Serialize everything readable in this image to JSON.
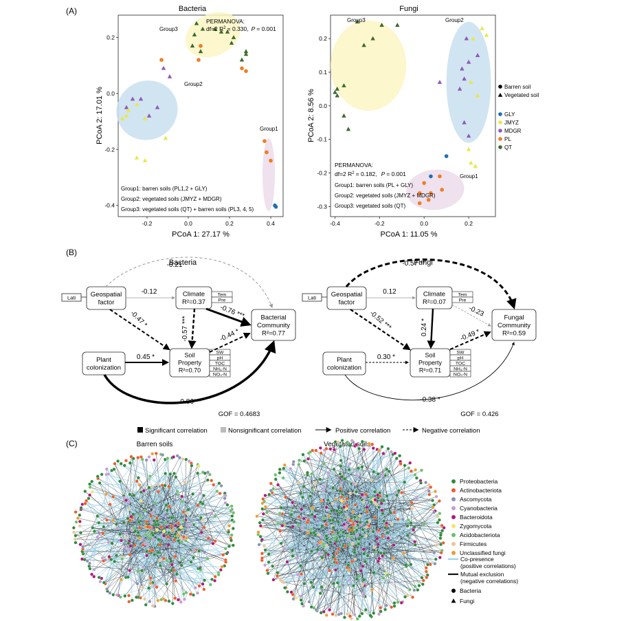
{
  "panel_labels": {
    "a": "(A)",
    "b": "(B)",
    "c": "(C)"
  },
  "colors": {
    "GLY": "#1f6fb2",
    "JMYZ": "#e8e84a",
    "MDGR": "#8e5ab8",
    "PL": "#f07d1e",
    "QT": "#3d6b2a",
    "group_yellow": "#fbf6c4",
    "group_blue": "#c9dff0",
    "group_pink": "#ecdcea"
  },
  "chart_data": [
    {
      "type": "scatter",
      "id": "bacteria_pcoa",
      "title": "Bacteria",
      "xlabel": "PCoA 1: 27.17 %",
      "ylabel": "PCoA 2: 17.01 %",
      "xlim": [
        -0.34,
        0.46
      ],
      "ylim": [
        -0.44,
        0.28
      ],
      "xticks": [
        "-0.2",
        "0.0",
        "0.2",
        "0.4"
      ],
      "xtick_values": [
        -0.2,
        0.0,
        0.2,
        0.4
      ],
      "yticks": [
        "0.2",
        "0.0",
        "-0.2",
        "-0.4"
      ],
      "ytick_values": [
        0.2,
        0.0,
        -0.2,
        -0.4
      ],
      "permanova": {
        "line1": "PERMANOVA:",
        "line2a": "df=2 R",
        "sup": "2",
        "line2b": "= 0.330,",
        "p": "P",
        "line2c": "= 0.001"
      },
      "groups": [
        {
          "label": "Group3",
          "cx": 0.12,
          "cy": 0.21,
          "rx": 0.14,
          "ry": 0.075,
          "angle": -25,
          "color": "group_yellow"
        },
        {
          "label": "Group2",
          "cx": -0.2,
          "cy": -0.06,
          "rx": 0.15,
          "ry": 0.105,
          "angle": -28,
          "color": "group_blue"
        },
        {
          "label": "Group1",
          "cx": 0.39,
          "cy": -0.29,
          "rx": 0.03,
          "ry": 0.13,
          "angle": 0,
          "color": "group_pink"
        }
      ],
      "group_notes": [
        "Group1: barren soils (PL1,2 + GLY)",
        "Group2: vegetated soils (JMYZ + MDGR)",
        "Group3: vegetated soils (QT) + barren soils (PL3, 4, 5)"
      ],
      "points": [
        {
          "x": 0.04,
          "y": 0.25,
          "site": "QT",
          "shape": "triangle"
        },
        {
          "x": 0.07,
          "y": 0.23,
          "site": "QT",
          "shape": "triangle"
        },
        {
          "x": 0.03,
          "y": 0.21,
          "site": "QT",
          "shape": "triangle"
        },
        {
          "x": 0.13,
          "y": 0.23,
          "site": "QT",
          "shape": "triangle"
        },
        {
          "x": 0.16,
          "y": 0.22,
          "site": "QT",
          "shape": "triangle"
        },
        {
          "x": 0.19,
          "y": 0.22,
          "site": "QT",
          "shape": "triangle"
        },
        {
          "x": 0.22,
          "y": 0.2,
          "site": "QT",
          "shape": "triangle"
        },
        {
          "x": 0.21,
          "y": 0.18,
          "site": "QT",
          "shape": "triangle"
        },
        {
          "x": 0.28,
          "y": 0.15,
          "site": "QT",
          "shape": "triangle"
        },
        {
          "x": 0.28,
          "y": 0.14,
          "site": "QT",
          "shape": "triangle"
        },
        {
          "x": 0.26,
          "y": 0.12,
          "site": "QT",
          "shape": "triangle"
        },
        {
          "x": 0.02,
          "y": 0.17,
          "site": "QT",
          "shape": "triangle"
        },
        {
          "x": 0.06,
          "y": 0.15,
          "site": "QT",
          "shape": "triangle"
        },
        {
          "x": 0.06,
          "y": 0.17,
          "site": "PL",
          "shape": "circle"
        },
        {
          "x": 0.05,
          "y": 0.12,
          "site": "PL",
          "shape": "circle"
        },
        {
          "x": 0.26,
          "y": 0.09,
          "site": "PL",
          "shape": "circle"
        },
        {
          "x": 0.28,
          "y": 0.08,
          "site": "PL",
          "shape": "circle"
        },
        {
          "x": -0.13,
          "y": 0.12,
          "site": "PL",
          "shape": "circle"
        },
        {
          "x": -0.09,
          "y": 0.06,
          "site": "MDGR",
          "shape": "triangle"
        },
        {
          "x": -0.12,
          "y": 0.09,
          "site": "MDGR",
          "shape": "triangle"
        },
        {
          "x": -0.27,
          "y": -0.02,
          "site": "MDGR",
          "shape": "triangle"
        },
        {
          "x": -0.23,
          "y": -0.02,
          "site": "MDGR",
          "shape": "triangle"
        },
        {
          "x": -0.15,
          "y": -0.05,
          "site": "MDGR",
          "shape": "triangle"
        },
        {
          "x": -0.3,
          "y": -0.05,
          "site": "MDGR",
          "shape": "triangle"
        },
        {
          "x": -0.19,
          "y": -0.08,
          "site": "MDGR",
          "shape": "triangle"
        },
        {
          "x": -0.25,
          "y": -0.04,
          "site": "JMYZ",
          "shape": "triangle"
        },
        {
          "x": -0.29,
          "y": -0.06,
          "site": "JMYZ",
          "shape": "triangle"
        },
        {
          "x": -0.32,
          "y": -0.09,
          "site": "JMYZ",
          "shape": "triangle"
        },
        {
          "x": -0.3,
          "y": -0.08,
          "site": "JMYZ",
          "shape": "triangle"
        },
        {
          "x": -0.21,
          "y": -0.09,
          "site": "JMYZ",
          "shape": "triangle"
        },
        {
          "x": -0.11,
          "y": -0.16,
          "site": "JMYZ",
          "shape": "triangle"
        },
        {
          "x": -0.25,
          "y": -0.23,
          "site": "JMYZ",
          "shape": "triangle"
        },
        {
          "x": -0.21,
          "y": -0.24,
          "site": "JMYZ",
          "shape": "triangle"
        },
        {
          "x": 0.37,
          "y": -0.17,
          "site": "PL",
          "shape": "circle"
        },
        {
          "x": 0.38,
          "y": -0.21,
          "site": "PL",
          "shape": "circle"
        },
        {
          "x": 0.4,
          "y": -0.24,
          "site": "PL",
          "shape": "circle"
        },
        {
          "x": 0.42,
          "y": -0.4,
          "site": "GLY",
          "shape": "circle"
        },
        {
          "x": 0.425,
          "y": -0.405,
          "site": "GLY",
          "shape": "circle"
        }
      ]
    },
    {
      "type": "scatter",
      "id": "fungi_pcoa",
      "title": "Fungi",
      "xlabel": "PCoA 1: 11.05 %",
      "ylabel": "PCoA 2: 8.56 %",
      "xlim": [
        -0.42,
        0.32
      ],
      "ylim": [
        -0.33,
        0.27
      ],
      "xticks": [
        "-0.4",
        "-0.2",
        "0.0",
        "0.2"
      ],
      "xtick_values": [
        -0.4,
        -0.2,
        0.0,
        0.2
      ],
      "yticks": [
        "0.2",
        "0.1",
        "0.0",
        "-0.1",
        "-0.2",
        "-0.3"
      ],
      "ytick_values": [
        0.2,
        0.1,
        0.0,
        -0.1,
        -0.2,
        -0.3
      ],
      "permanova": {
        "line1": "PERMANOVA:",
        "line2a": "df=2 R",
        "sup": "2",
        "line2b": "= 0.182,",
        "p": "P",
        "line2c": "= 0.001"
      },
      "groups": [
        {
          "label": "Group3",
          "cx": -0.25,
          "cy": 0.12,
          "rx": 0.17,
          "ry": 0.135,
          "angle": 0,
          "color": "group_yellow"
        },
        {
          "label": "Group2",
          "cx": 0.2,
          "cy": 0.07,
          "rx": 0.1,
          "ry": 0.18,
          "angle": 0,
          "color": "group_blue"
        },
        {
          "label": "Group1",
          "cx": 0.05,
          "cy": -0.25,
          "rx": 0.13,
          "ry": 0.06,
          "angle": -5,
          "color": "group_pink"
        }
      ],
      "group_notes": [
        "Group1: barren soils (PL + GLY)",
        "Group2: vegetated soils (JMYZ + MDGR)",
        "Group3: vegetated soils (QT)"
      ],
      "legend_shape": [
        {
          "label": "Barren soil",
          "shape": "circle"
        },
        {
          "label": "Vegetated soil",
          "shape": "triangle"
        }
      ],
      "legend_sites": [
        "GLY",
        "JMYZ",
        "MDGR",
        "PL",
        "QT"
      ],
      "points": [
        {
          "x": -0.3,
          "y": 0.25,
          "site": "QT",
          "shape": "triangle"
        },
        {
          "x": -0.19,
          "y": 0.24,
          "site": "QT",
          "shape": "triangle"
        },
        {
          "x": -0.12,
          "y": 0.24,
          "site": "QT",
          "shape": "triangle"
        },
        {
          "x": -0.23,
          "y": 0.2,
          "site": "QT",
          "shape": "triangle"
        },
        {
          "x": -0.27,
          "y": 0.18,
          "site": "QT",
          "shape": "triangle"
        },
        {
          "x": -0.36,
          "y": 0.06,
          "site": "QT",
          "shape": "triangle"
        },
        {
          "x": -0.39,
          "y": 0.05,
          "site": "QT",
          "shape": "triangle"
        },
        {
          "x": -0.4,
          "y": 0.04,
          "site": "QT",
          "shape": "triangle"
        },
        {
          "x": -0.39,
          "y": 0.03,
          "site": "QT",
          "shape": "triangle"
        },
        {
          "x": -0.36,
          "y": -0.03,
          "site": "QT",
          "shape": "triangle"
        },
        {
          "x": -0.34,
          "y": -0.07,
          "site": "QT",
          "shape": "triangle"
        },
        {
          "x": 0.26,
          "y": 0.23,
          "site": "JMYZ",
          "shape": "triangle"
        },
        {
          "x": 0.28,
          "y": 0.21,
          "site": "JMYZ",
          "shape": "triangle"
        },
        {
          "x": 0.22,
          "y": 0.2,
          "site": "JMYZ",
          "shape": "triangle"
        },
        {
          "x": 0.19,
          "y": 0.2,
          "site": "MDGR",
          "shape": "triangle"
        },
        {
          "x": 0.24,
          "y": 0.15,
          "site": "MDGR",
          "shape": "triangle"
        },
        {
          "x": 0.2,
          "y": 0.13,
          "site": "MDGR",
          "shape": "triangle"
        },
        {
          "x": 0.17,
          "y": 0.11,
          "site": "MDGR",
          "shape": "triangle"
        },
        {
          "x": 0.18,
          "y": 0.08,
          "site": "MDGR",
          "shape": "triangle"
        },
        {
          "x": 0.07,
          "y": 0.07,
          "site": "MDGR",
          "shape": "triangle"
        },
        {
          "x": 0.16,
          "y": 0.05,
          "site": "MDGR",
          "shape": "triangle"
        },
        {
          "x": 0.21,
          "y": 0.07,
          "site": "JMYZ",
          "shape": "triangle"
        },
        {
          "x": 0.24,
          "y": 0.03,
          "site": "JMYZ",
          "shape": "triangle"
        },
        {
          "x": 0.18,
          "y": -0.05,
          "site": "MDGR",
          "shape": "triangle"
        },
        {
          "x": 0.2,
          "y": -0.09,
          "site": "MDGR",
          "shape": "triangle"
        },
        {
          "x": 0.2,
          "y": -0.13,
          "site": "JMYZ",
          "shape": "triangle"
        },
        {
          "x": 0.21,
          "y": -0.17,
          "site": "JMYZ",
          "shape": "triangle"
        },
        {
          "x": 0.23,
          "y": -0.18,
          "site": "JMYZ",
          "shape": "triangle"
        },
        {
          "x": 0.1,
          "y": -0.15,
          "site": "GLY",
          "shape": "circle"
        },
        {
          "x": 0.03,
          "y": -0.21,
          "site": "GLY",
          "shape": "circle"
        },
        {
          "x": 0.07,
          "y": -0.21,
          "site": "PL",
          "shape": "circle"
        },
        {
          "x": 0.0,
          "y": -0.23,
          "site": "PL",
          "shape": "circle"
        },
        {
          "x": 0.03,
          "y": -0.26,
          "site": "PL",
          "shape": "circle"
        },
        {
          "x": 0.08,
          "y": -0.25,
          "site": "PL",
          "shape": "circle"
        },
        {
          "x": -0.02,
          "y": -0.26,
          "site": "PL",
          "shape": "circle"
        },
        {
          "x": 0.02,
          "y": -0.28,
          "site": "PL",
          "shape": "circle"
        },
        {
          "x": -0.02,
          "y": -0.29,
          "site": "PL",
          "shape": "circle"
        }
      ]
    }
  ],
  "sem": {
    "bacteria": {
      "title": "Bacteria",
      "lati": "Lati",
      "geo": [
        "Geospatial",
        "factor"
      ],
      "climate": "Climate",
      "climate_r2": "R²=0.37",
      "climate_vars": [
        "Tem",
        "Pre"
      ],
      "plant": [
        "Plant",
        "colonization"
      ],
      "soil": [
        "Soil",
        "Property"
      ],
      "soil_r2": "R²=0.70",
      "soil_vars": [
        "SW",
        "pH",
        "TOC",
        "NH₄-N",
        "NO₃-N"
      ],
      "community": [
        "Bacterial",
        "Community"
      ],
      "community_r2": "R²=0.77",
      "paths": {
        "geo_comm": "-0.21",
        "geo_clim": "-0.12",
        "geo_soil": "-0.47 *",
        "clim_soil": "-0.57 ***",
        "clim_comm": "-0.76 ***",
        "soil_comm": "-0.44 *",
        "plant_soil": "0.45 *",
        "plant_comm": "0.86***"
      },
      "gof": "GOF = 0.4683"
    },
    "fungi": {
      "title": "Fungi",
      "lati": "Lati",
      "geo": [
        "Geospatial",
        "factor"
      ],
      "climate": "Climate",
      "climate_r2": "R²=0.07",
      "climate_vars": [
        "Tem",
        "Pre"
      ],
      "plant": [
        "Plant",
        "colonization"
      ],
      "soil": [
        "Soil",
        "Property"
      ],
      "soil_r2": "R²=0.71",
      "soil_vars": [
        "SW",
        "pH",
        "TOC",
        "NH₄-N",
        "NO₃-N"
      ],
      "community": [
        "Fungal",
        "Community"
      ],
      "community_r2": "R²=0.59",
      "paths": {
        "geo_comm": "-0.57 **",
        "geo_clim": "0.12",
        "geo_soil": "-0.52 ***",
        "clim_soil": "0.24 *",
        "clim_comm": "-0.23",
        "soil_comm": "-0.49 *",
        "plant_soil": "0.30 *",
        "plant_comm": "-0.38 *"
      },
      "gof": "GOF = 0.426"
    },
    "legend": {
      "sig": "Significant correlation",
      "nonsig": "Nonsignificant correlation",
      "pos": "Positive correlation",
      "neg": "Negative correlation"
    }
  },
  "network": {
    "titles": [
      "Barren soils",
      "Vegetated soils"
    ],
    "phyla": [
      {
        "name": "Proteobacteria",
        "color": "#2f8a3c"
      },
      {
        "name": "Actinobacteriota",
        "color": "#f05a28"
      },
      {
        "name": "Ascomycota",
        "color": "#8c8fb5"
      },
      {
        "name": "Cyanobacteria",
        "color": "#c89bd1"
      },
      {
        "name": "Bacteroidota",
        "color": "#b0177a"
      },
      {
        "name": "Zygomycota",
        "color": "#f3e36a"
      },
      {
        "name": "Acidobacteriota",
        "color": "#6ac06a"
      },
      {
        "name": "Firmicutes",
        "color": "#e6c79a"
      },
      {
        "name": "Unclassified fungi",
        "color": "#f29a2e"
      }
    ],
    "edges": [
      {
        "label1": "Co-presence",
        "label2": "(positive correlations)",
        "color": "#9fd0e6"
      },
      {
        "label1": "Mutual exclusion",
        "label2": "(negative correlations)",
        "color": "#111111"
      }
    ],
    "shapes": [
      {
        "label": "Bacteria",
        "shape": "circle"
      },
      {
        "label": "Fungi",
        "shape": "triangle"
      }
    ]
  }
}
